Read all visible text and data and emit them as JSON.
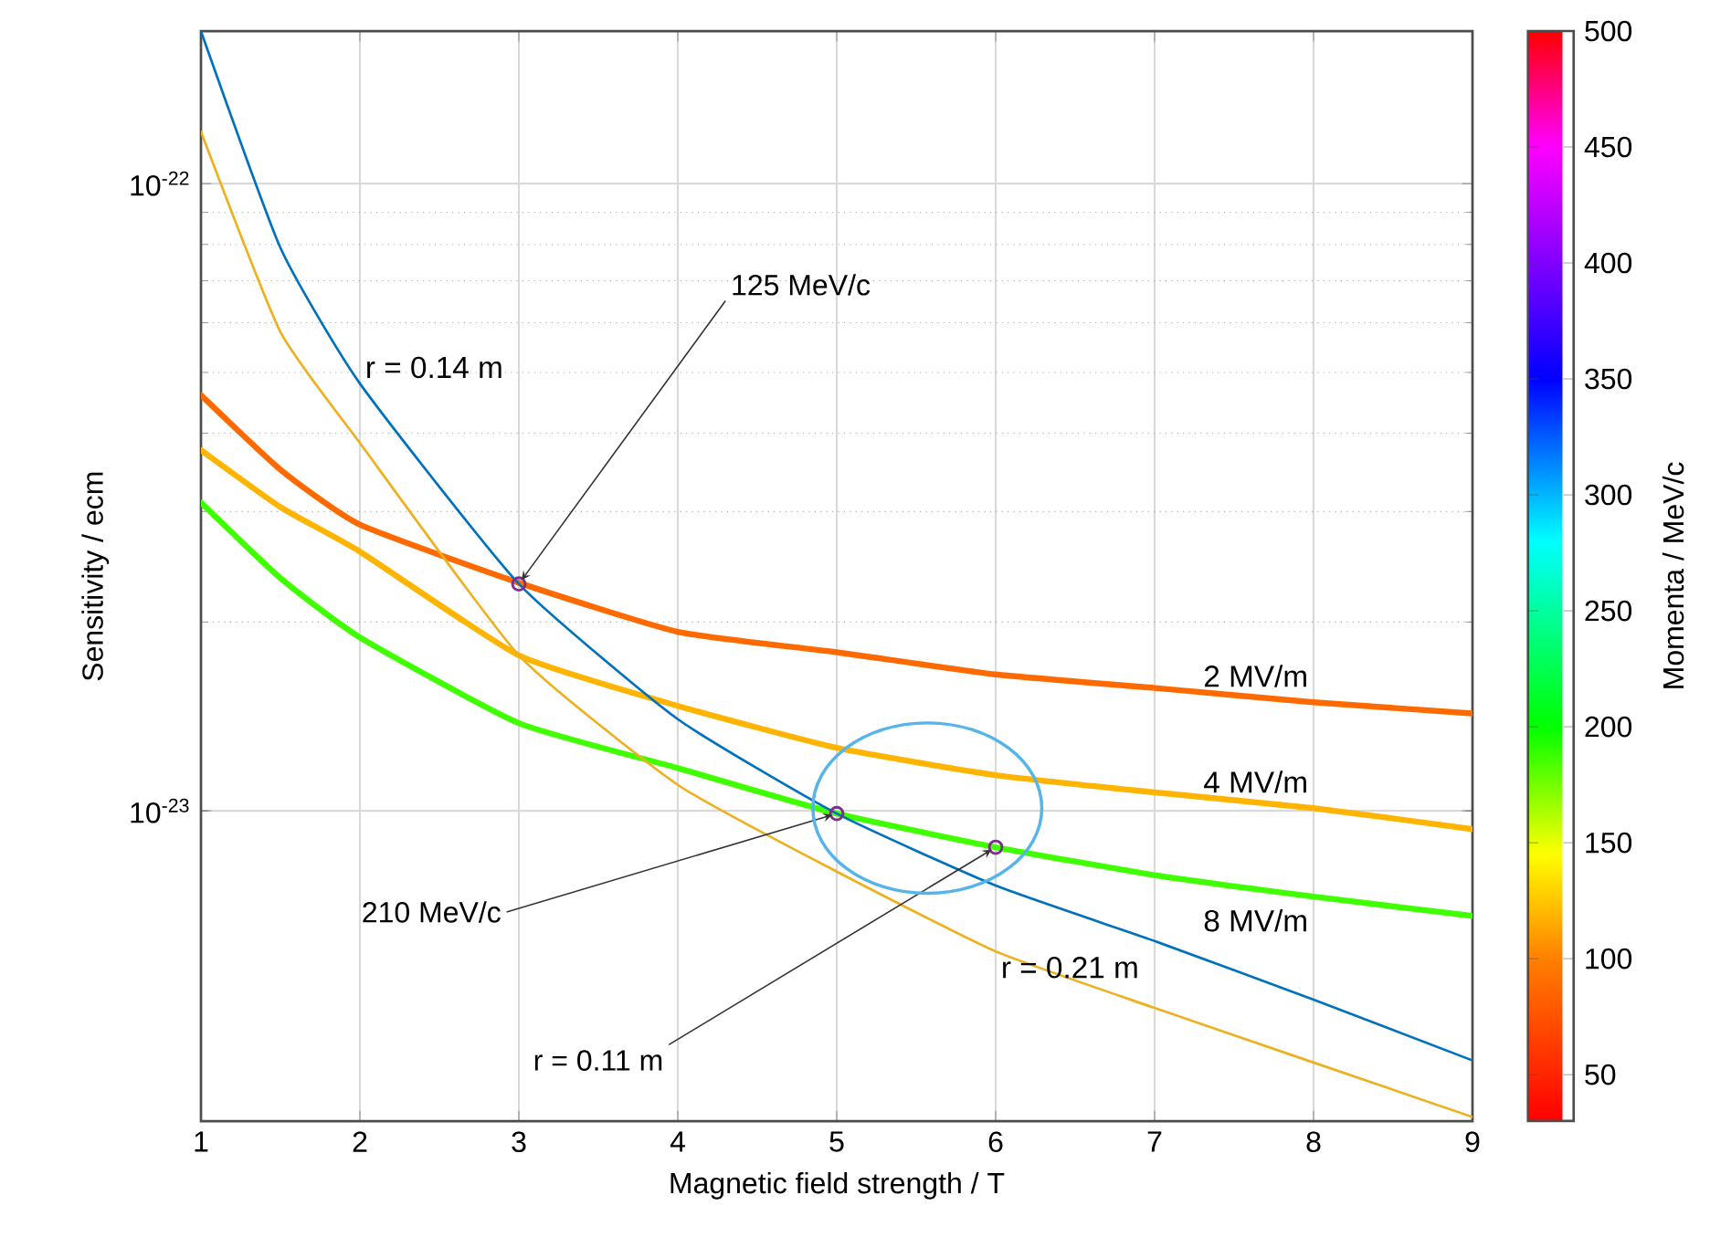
{
  "chart_data": {
    "type": "line",
    "xlabel": "Magnetic field strength / T",
    "ylabel": "Sensitivity / ecm",
    "clabel": "Momenta  / MeV/c",
    "xlim": [
      1,
      9
    ],
    "xticks": [
      1,
      2,
      3,
      4,
      5,
      6,
      7,
      8,
      9
    ],
    "ylim": [
      3.2e-24,
      1.75e-22
    ],
    "yticks": [
      {
        "value": 1e-23,
        "label": "10$^{-23}$"
      },
      {
        "value": 1e-22,
        "label": "10$^{-22}$"
      }
    ],
    "log": "y",
    "grid": true,
    "clim": [
      30,
      500
    ],
    "cticks": [
      50,
      100,
      150,
      200,
      250,
      300,
      350,
      400,
      450,
      500
    ],
    "series": [
      {
        "name": "2 MV/m",
        "x": [
          1,
          1.5,
          2,
          3,
          4,
          5,
          6,
          7,
          8,
          9
        ],
        "values": [
          4.6e-23,
          3.5e-23,
          2.86e-23,
          2.31e-23,
          1.93e-23,
          1.79e-23,
          1.65e-23,
          1.57e-23,
          1.49e-23,
          1.43e-23
        ],
        "color": "#ff6a00"
      },
      {
        "name": "4 MV/m",
        "x": [
          1,
          1.5,
          2,
          3,
          4,
          5,
          6,
          7,
          8,
          9
        ],
        "values": [
          3.76e-23,
          3.05e-23,
          2.59e-23,
          1.77e-23,
          1.47e-23,
          1.26e-23,
          1.14e-23,
          1.07e-23,
          1.01e-23,
          9.35e-24
        ],
        "color": "#ffb400"
      },
      {
        "name": "8 MV/m",
        "x": [
          1,
          1.5,
          2,
          3,
          4,
          5,
          6,
          7,
          8,
          9
        ],
        "values": [
          3.1e-23,
          2.35e-23,
          1.89e-23,
          1.38e-23,
          1.17e-23,
          9.9e-24,
          8.75e-24,
          7.9e-24,
          7.3e-24,
          6.8e-24
        ],
        "color": "#40ff00"
      },
      {
        "name": "r = 0.14 m",
        "color": "#0072bd",
        "x": [
          1,
          1.5,
          2,
          3,
          4,
          5,
          6,
          7,
          8,
          9
        ],
        "values": [
          1.75e-22,
          7.9e-23,
          4.8e-23,
          2.3e-23,
          1.4e-23,
          9.9e-24,
          7.6e-24,
          6.2e-24,
          5e-24,
          4e-24
        ]
      },
      {
        "name": "r = 0.21 m",
        "color": "#edb120",
        "x": [
          1,
          1.5,
          2,
          3,
          4,
          5,
          6,
          7,
          8,
          9
        ],
        "values": [
          1.21e-22,
          5.8e-23,
          3.86e-23,
          1.77e-23,
          1.1e-23,
          8e-24,
          5.97e-24,
          4.85e-24,
          3.97e-24,
          3.25e-24
        ]
      },
      {
        "type": "scatter",
        "marker": "circle",
        "color": "#7e2f8e",
        "x": [
          3,
          5,
          6
        ],
        "values": [
          2.3e-23,
          9.9e-24,
          8.75e-24
        ]
      }
    ],
    "annotations": [
      {
        "text": "125 MeV/c",
        "x": 3,
        "y": 2.3e-23
      },
      {
        "text": "210 MeV/c",
        "x": 5,
        "y": 9.9e-24
      },
      {
        "text": "r = 0.11 m",
        "x": 6,
        "y": 8.75e-24
      }
    ]
  }
}
